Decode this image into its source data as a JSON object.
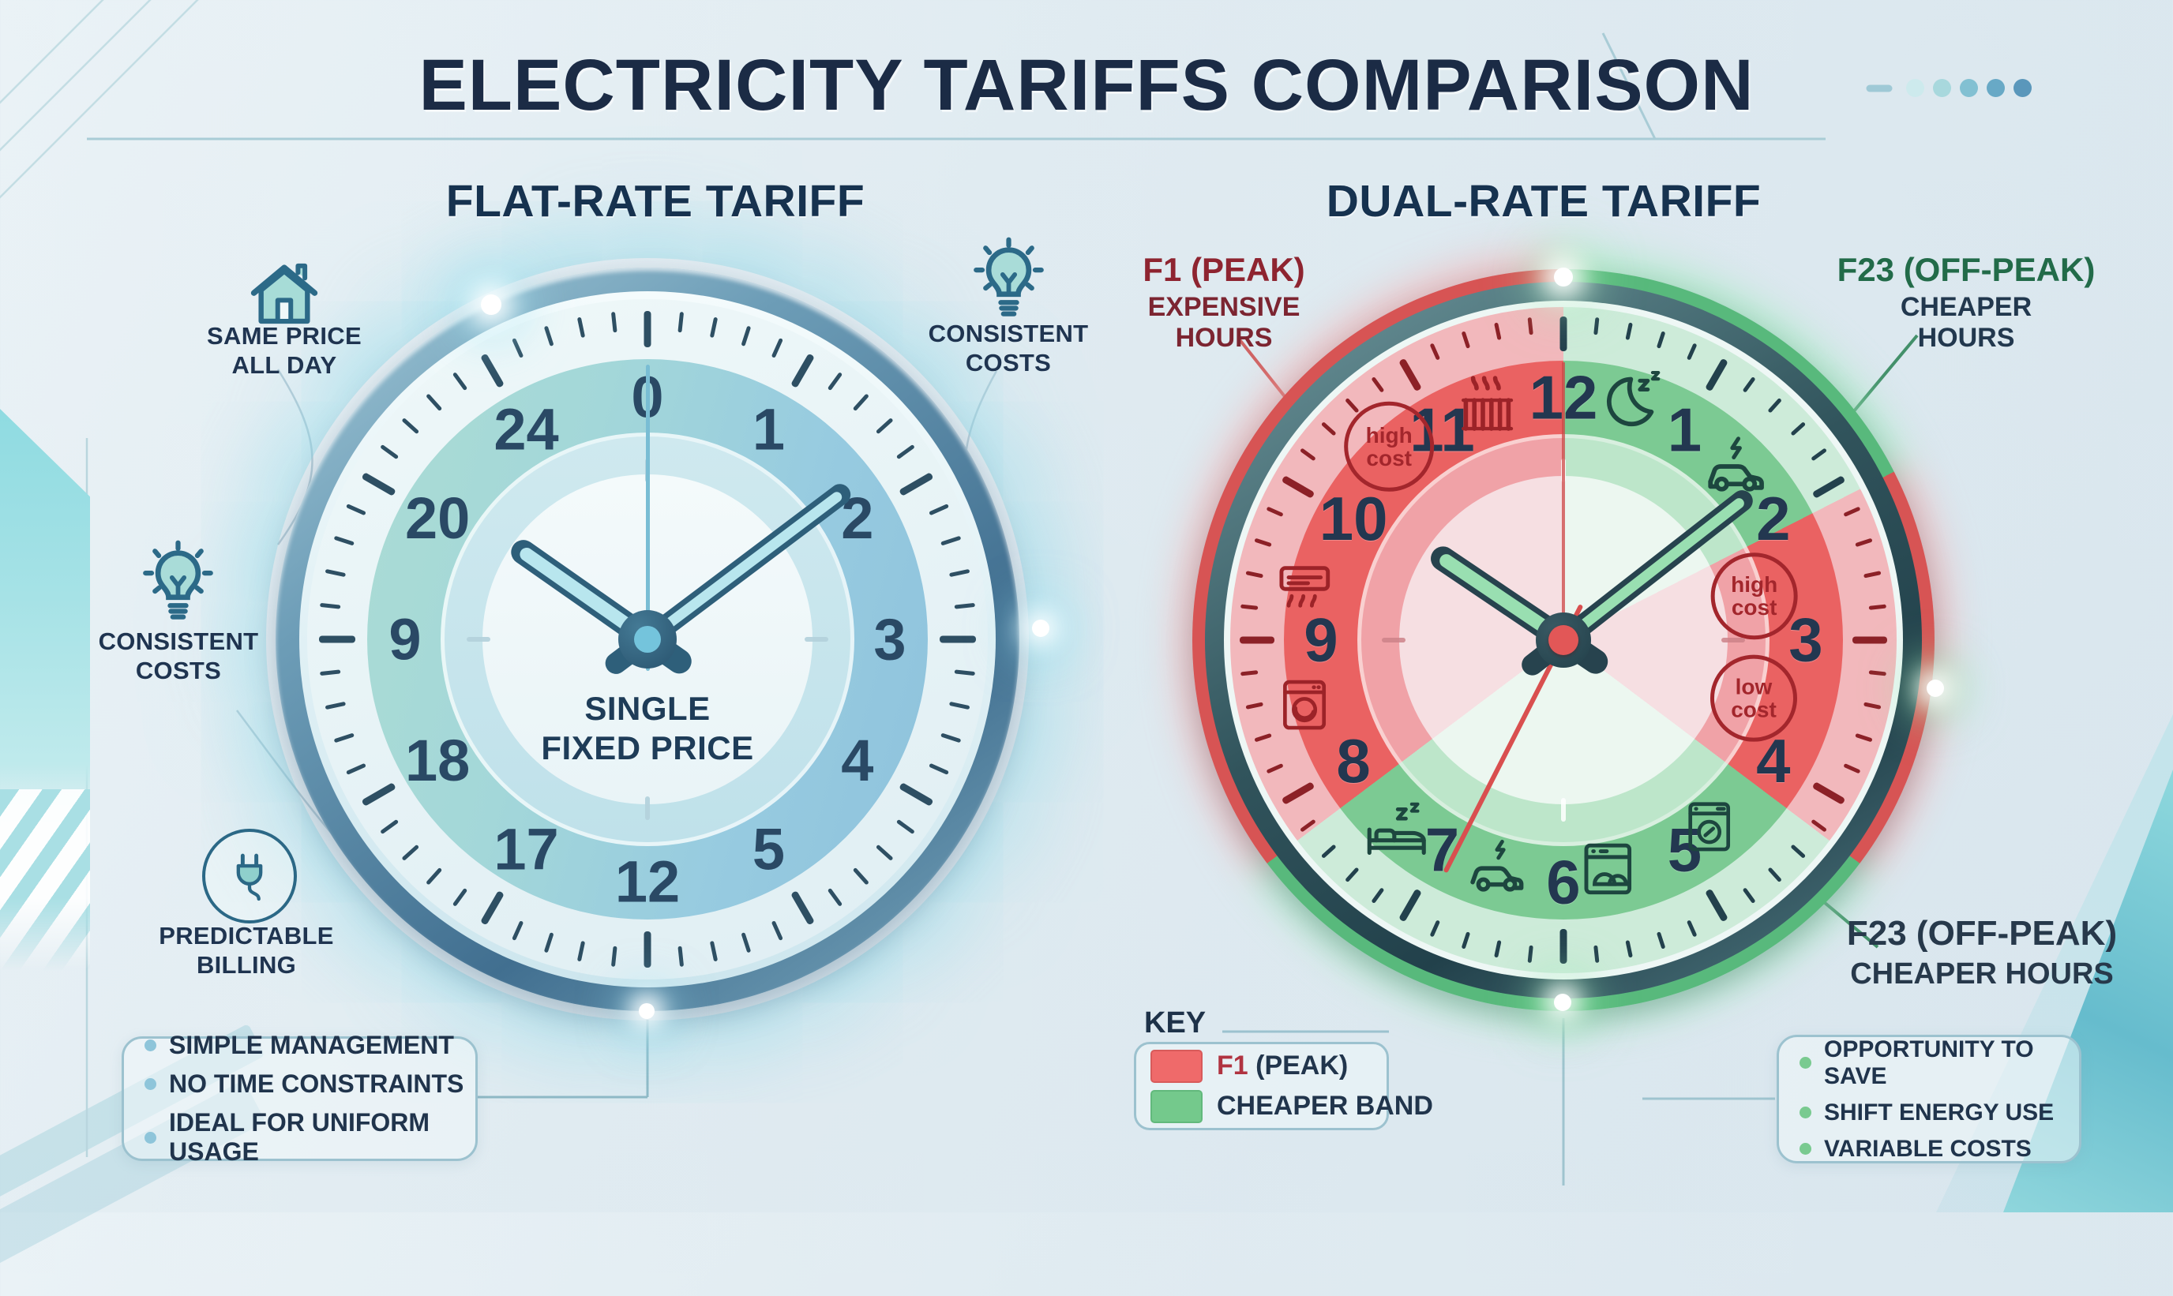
{
  "title": "ELECTRICITY TARIFFS COMPARISON",
  "decor": {
    "dot_colors": [
      "#cdeaed",
      "#a8d8dd",
      "#82c0d2",
      "#68a9c6",
      "#5a97bb"
    ]
  },
  "flat_panel": {
    "heading": "FLAT-RATE TARIFF",
    "callout_same_price": "SAME PRICE\nALL DAY",
    "callout_consistent_right": "CONSISTENT\nCOSTS",
    "callout_consistent_left": "CONSISTENT\nCOSTS",
    "callout_predictable": "PREDICTABLE\nBILLING",
    "clock_numbers": [
      "0",
      "1",
      "2",
      "3",
      "4",
      "5",
      "12",
      "17",
      "18",
      "9",
      "20",
      "24"
    ],
    "clock_center_label": "SINGLE\nFIXED PRICE",
    "benefits": [
      "SIMPLE MANAGEMENT",
      "NO TIME CONSTRAINTS",
      "IDEAL FOR UNIFORM USAGE"
    ]
  },
  "dual_panel": {
    "heading": "DUAL-RATE TARIFF",
    "peak_callout": {
      "title": "F1 (PEAK)",
      "subtitle": "EXPENSIVE\nHOURS"
    },
    "offpeak_callout_top": {
      "title": "F23 (OFF-PEAK)",
      "subtitle": "CHEAPER\nHOURS"
    },
    "offpeak_callout_bottom": {
      "title": "F23 (OFF-PEAK)",
      "subtitle": "CHEAPER HOURS"
    },
    "clock_numbers": [
      "12",
      "1",
      "2",
      "3",
      "4",
      "5",
      "6",
      "7",
      "8",
      "9",
      "10",
      "11"
    ],
    "zone_stops_deg": [
      {
        "from": 0,
        "to": 63,
        "band": "offpeak-green"
      },
      {
        "from": 63,
        "to": 127,
        "band": "peak-red"
      },
      {
        "from": 127,
        "to": 233,
        "band": "offpeak-green"
      },
      {
        "from": 233,
        "to": 360,
        "band": "peak-red"
      }
    ],
    "badges": [
      {
        "name": "high-cost-badge",
        "text": "high\ncost",
        "angle": 318,
        "radius": 330,
        "size": 104
      },
      {
        "name": "high-cost-badge",
        "text": "high\ncost",
        "angle": 77,
        "radius": 248,
        "size": 100
      },
      {
        "name": "low-cost-badge",
        "text": "low\ncost",
        "angle": 107,
        "radius": 252,
        "size": 100
      }
    ],
    "icons": [
      {
        "name": "radiator-icon",
        "angle": 342,
        "radius": 312,
        "zone": "red",
        "size": 96
      },
      {
        "name": "moon-icon",
        "angle": 15,
        "radius": 312,
        "zone": "green",
        "size": 92
      },
      {
        "name": "ev-car-icon",
        "angle": 45,
        "radius": 310,
        "zone": "green",
        "size": 92
      },
      {
        "name": "air-conditioner-icon",
        "angle": 282,
        "radius": 335,
        "zone": "red",
        "size": 84
      },
      {
        "name": "washing-machine-icon",
        "angle": 256,
        "radius": 338,
        "zone": "red",
        "size": 80
      },
      {
        "name": "bed-icon",
        "angle": 221,
        "radius": 322,
        "zone": "green",
        "size": 88
      },
      {
        "name": "ev-charging-car-icon",
        "angle": 196,
        "radius": 300,
        "zone": "green",
        "size": 88
      },
      {
        "name": "dishwasher-icon",
        "angle": 169,
        "radius": 295,
        "zone": "green",
        "size": 84
      },
      {
        "name": "laundry-machine-icon",
        "angle": 142,
        "radius": 300,
        "zone": "green",
        "size": 80
      }
    ],
    "key": {
      "title": "KEY",
      "item1_strong": "F1",
      "item1_rest": " (PEAK)",
      "item1_swatch": "#ef6a6a",
      "item2_label": "CHEAPER BAND",
      "item2_swatch": "#74c98c"
    },
    "benefits": [
      "OPPORTUNITY TO SAVE",
      "SHIFT ENERGY USE",
      "VARIABLE COSTS"
    ]
  },
  "colors": {
    "peak_red_band": "#ea6262",
    "offpeak_green_band": "#7cca93",
    "flat_band_teal": "#a3d7d9",
    "flat_band_blue": "#8ec2dc",
    "accent_navy": "#1b2b45",
    "peak_text_red": "#8e2430",
    "offpeak_text_green": "#226b49"
  }
}
